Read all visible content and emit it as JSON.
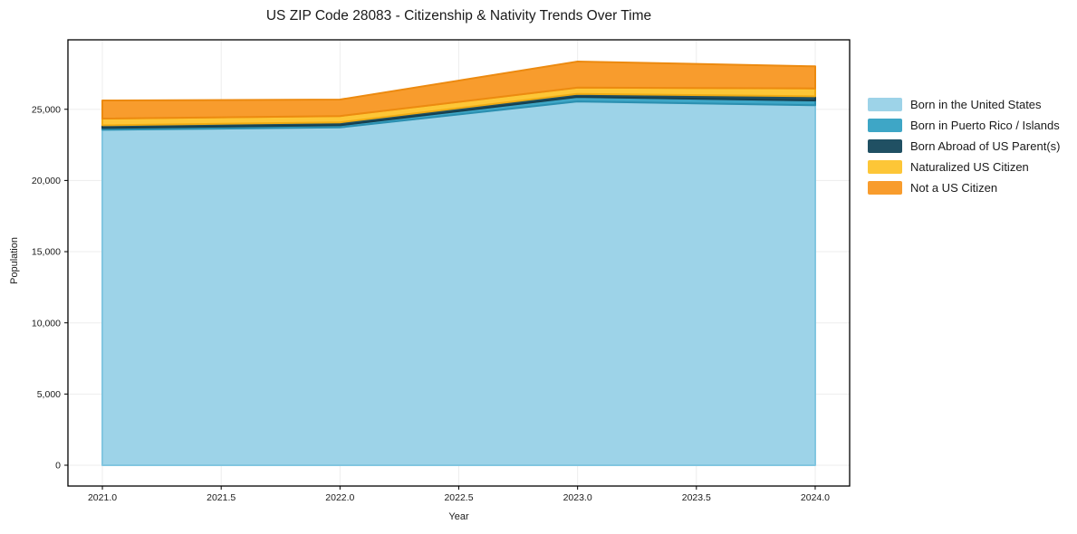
{
  "chart_data": {
    "type": "area",
    "variant": "stacked-area",
    "title": "US ZIP Code 28083 - Citizenship & Nativity Trends Over Time",
    "xlabel": "Year",
    "ylabel": "Population",
    "x": [
      2021,
      2022,
      2023,
      2024
    ],
    "series": [
      {
        "name": "Born in the United States",
        "fill": "#9dd3e8",
        "edge": "#82c6e0",
        "values": [
          23558,
          23723,
          25549,
          25281
        ]
      },
      {
        "name": "Born in Puerto Rico / Islands",
        "fill": "#3ea6c6",
        "edge": "#2b8fb0",
        "values": [
          128,
          152,
          318,
          336
        ]
      },
      {
        "name": "Born Abroad of US Parent(s)",
        "fill": "#205063",
        "edge": "#16404f",
        "values": [
          192,
          208,
          214,
          297
        ]
      },
      {
        "name": "Naturalized US Citizen",
        "fill": "#fdc637",
        "edge": "#f0ac14",
        "values": [
          468,
          441,
          443,
          552
        ]
      },
      {
        "name": "Not a US Citizen",
        "fill": "#f89c2d",
        "edge": "#ec8a10",
        "values": [
          1272,
          1158,
          1831,
          1549
        ]
      }
    ],
    "totals": [
      25618,
      25682,
      28355,
      28015
    ],
    "x_ticks": [
      2021.0,
      2021.5,
      2022.0,
      2022.5,
      2023.0,
      2023.5,
      2024.0
    ],
    "y_ticks": [
      0,
      5000,
      10000,
      15000,
      20000,
      25000
    ],
    "xlim": [
      2020.855,
      2024.145
    ],
    "ylim": [
      -1462,
      29878
    ],
    "grid": true,
    "grid_color": "#ededed",
    "spine_color": "#000000",
    "text_color": "#1a1a1a",
    "legend_position": "right-outside"
  }
}
